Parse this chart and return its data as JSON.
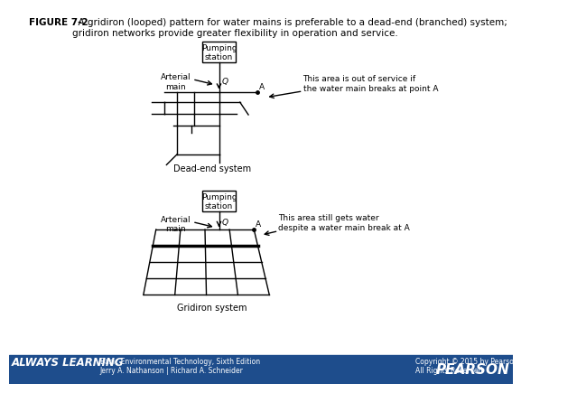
{
  "title_bold": "FIGURE 7-2",
  "title_rest": "  A gridiron (looped) pattern for water mains is preferable to a dead-end (branched) system;\ngridiron networks provide greater flexibility in operation and service.",
  "bg_color": "#ffffff",
  "footer_bg": "#1e4d8c",
  "footer_text_left": "Basic Environmental Technology, Sixth Edition\nJerry A. Nathanson | Richard A. Schneider",
  "footer_text_right": "Copyright © 2015 by Pearson Education, Inc\nAll Rights Reserved",
  "pumping_station_label": "Pumping\nstation",
  "arterial_main_label": "Arterial\nmain",
  "dead_end_label": "Dead-end system",
  "gridiron_label": "Gridiron system",
  "Q_label": "Q",
  "A_label": "A",
  "dead_end_note": "This area is out of service if\nthe water main breaks at point A",
  "gridiron_note": "This area still gets water\ndespite a water main break at A"
}
